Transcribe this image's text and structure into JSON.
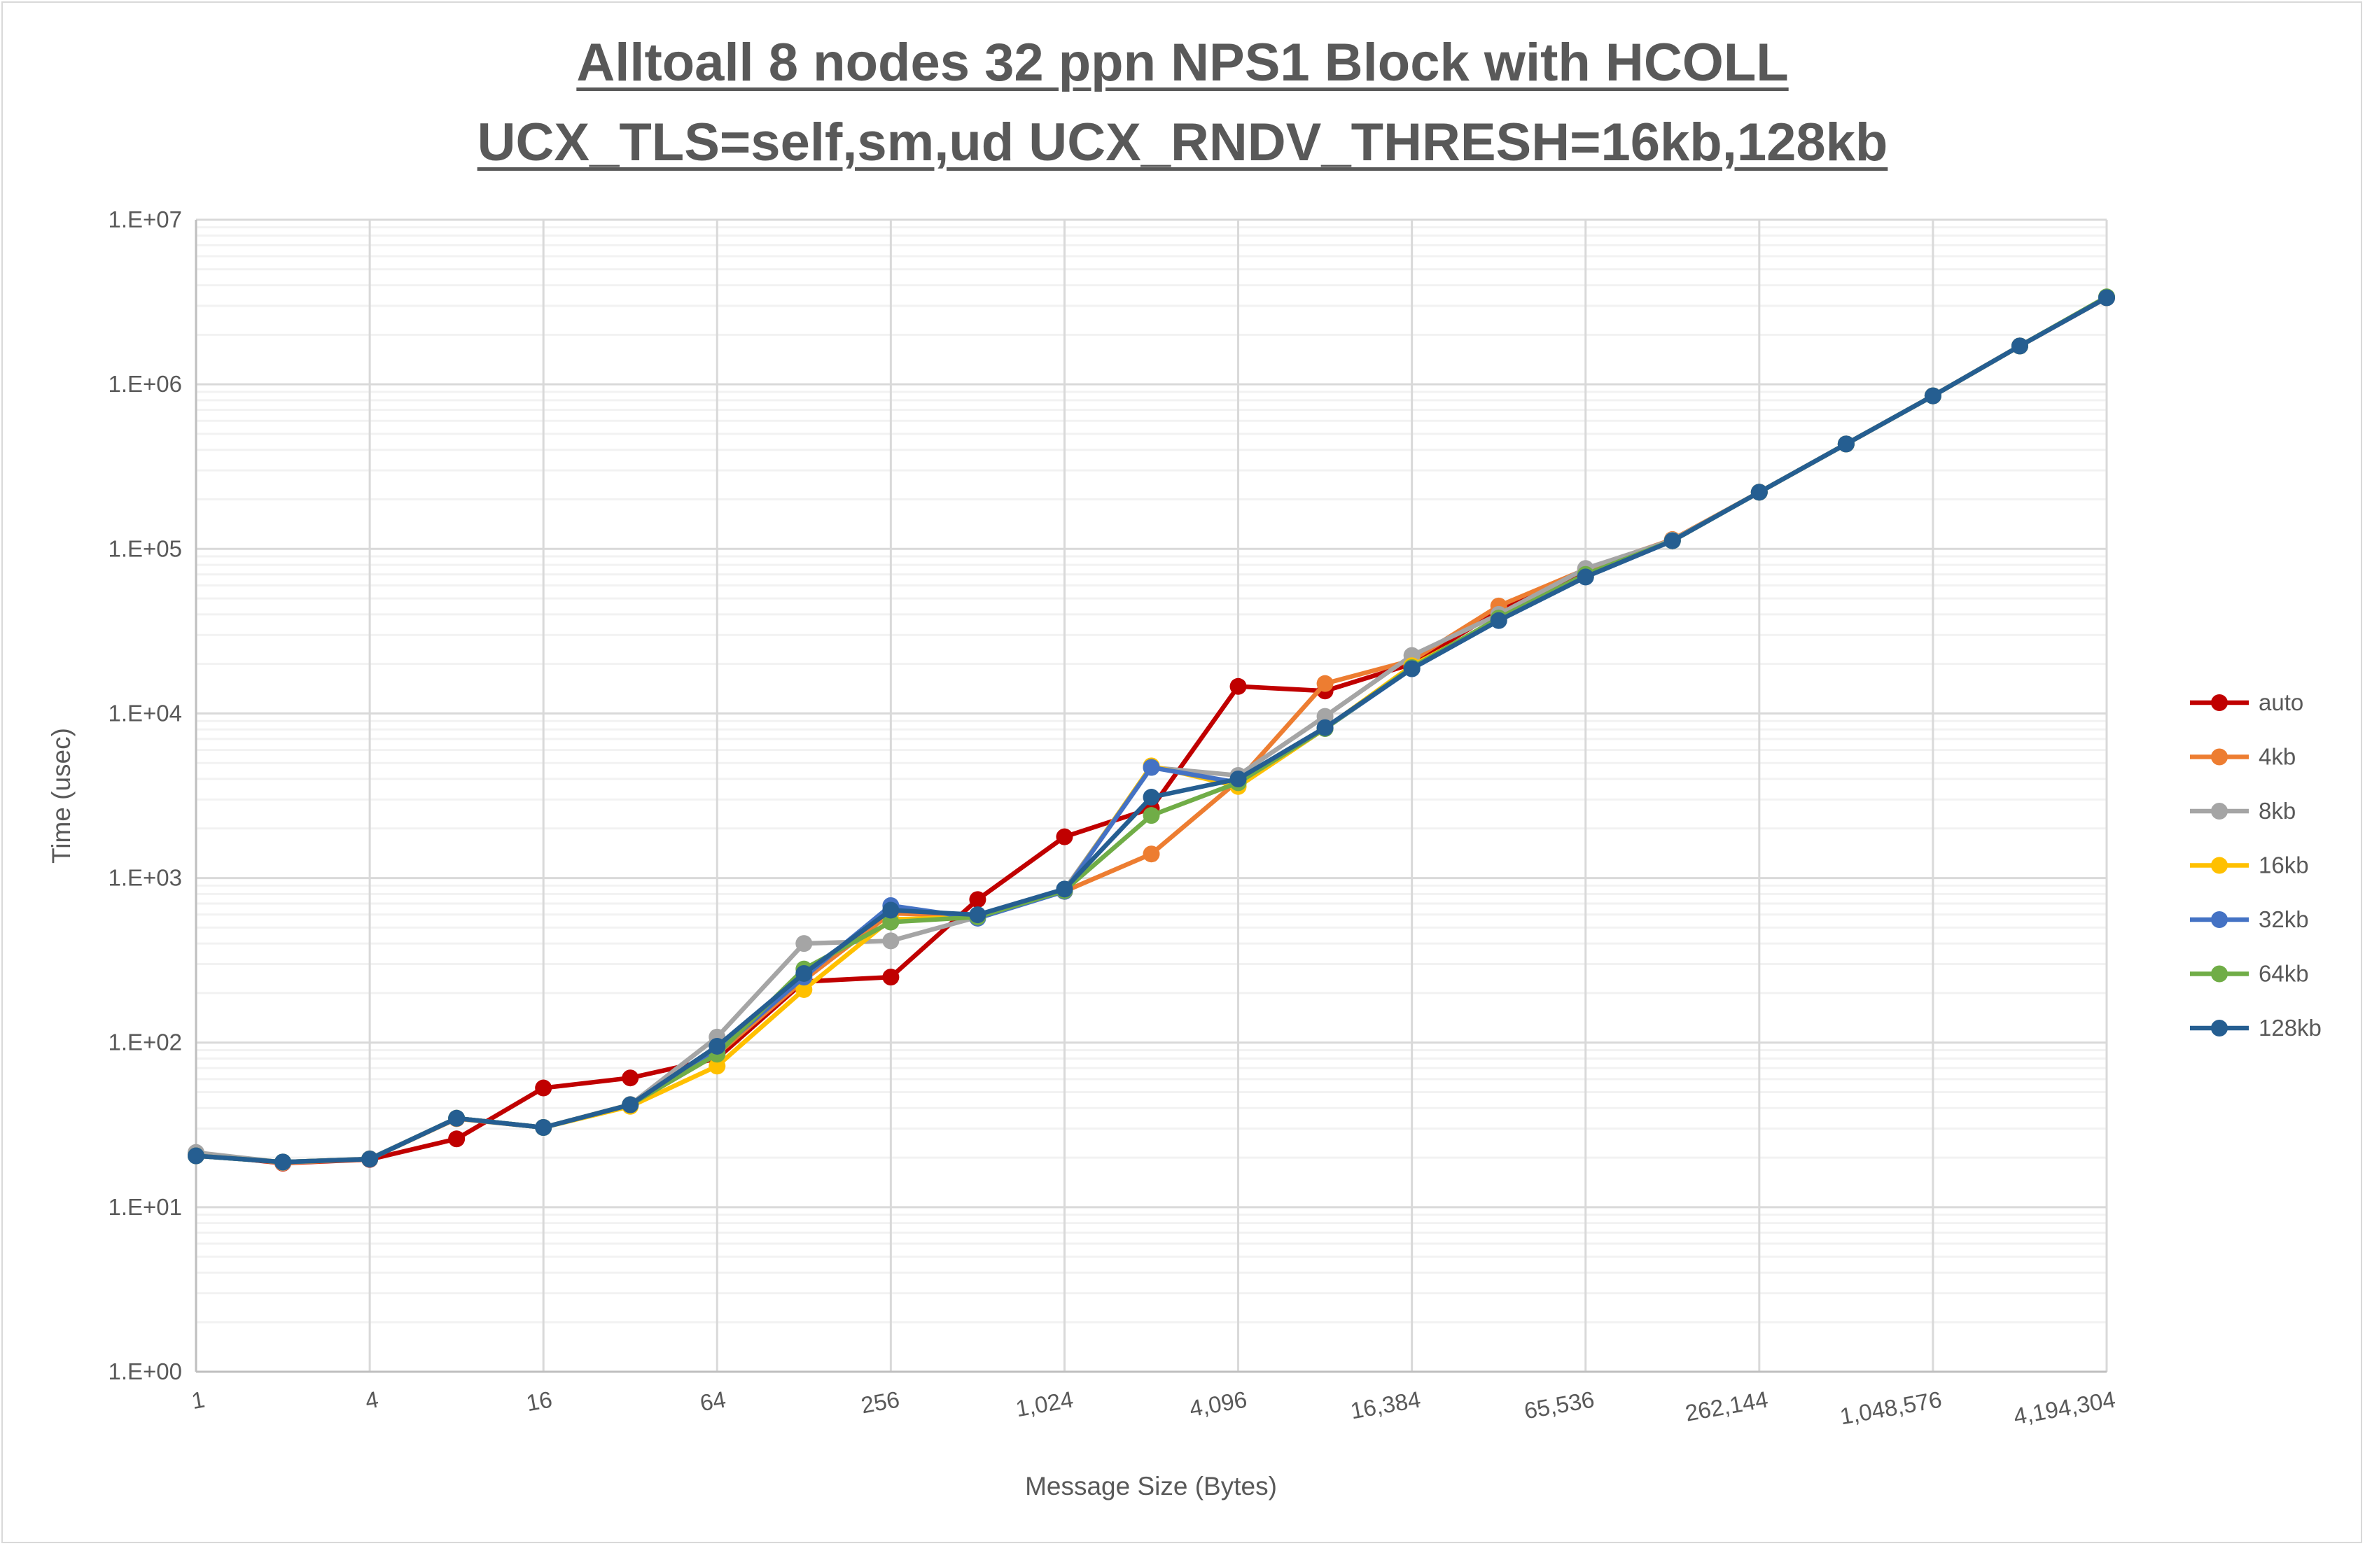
{
  "chart_data": {
    "type": "line",
    "title": [
      "Alltoall 8 nodes 32 ppn NPS1 Block with HCOLL",
      "UCX_TLS=self,sm,ud UCX_RNDV_THRESH=16kb,128kb"
    ],
    "xlabel": "Message Size (Bytes)",
    "ylabel": "Time (usec)",
    "x_scale": "log2",
    "y_scale": "log10",
    "ylim": [
      1,
      10000000
    ],
    "xlim": [
      1,
      4194304
    ],
    "grid": true,
    "legend": "right",
    "x": [
      1,
      2,
      4,
      8,
      16,
      32,
      64,
      128,
      256,
      512,
      1024,
      2048,
      4096,
      8192,
      16384,
      32768,
      65536,
      131072,
      262144,
      524288,
      1048576,
      2097152,
      4194304
    ],
    "x_tick_labels": [
      "1",
      "4",
      "16",
      "64",
      "256",
      "1,024",
      "4,096",
      "16,384",
      "65,536",
      "262,144",
      "1,048,576",
      "4,194,304"
    ],
    "y_tick_labels": [
      "1.E+00",
      "1.E+01",
      "1.E+02",
      "1.E+03",
      "1.E+04",
      "1.E+05",
      "1.E+06",
      "1.E+07"
    ],
    "series": [
      {
        "name": "auto",
        "color": "#C00000",
        "values": [
          21,
          18.5,
          19.5,
          26,
          53,
          61,
          80,
          235,
          250,
          740,
          1780,
          2650,
          14600,
          13700,
          20000,
          42000,
          72000,
          113000,
          221000,
          434000,
          851000,
          1710000,
          3360000
        ]
      },
      {
        "name": "4kb",
        "color": "#ED7D31",
        "values": [
          21,
          18.6,
          19.6,
          34.5,
          30.5,
          42,
          85,
          240,
          610,
          590,
          830,
          1400,
          3900,
          15200,
          21000,
          45000,
          75000,
          114000,
          221000,
          434000,
          851000,
          1710000,
          3380000
        ]
      },
      {
        "name": "8kb",
        "color": "#A5A5A5",
        "values": [
          21.5,
          18.7,
          19.7,
          34.7,
          30.5,
          42,
          108,
          400,
          415,
          580,
          850,
          4700,
          4200,
          9600,
          22500,
          40000,
          76000,
          113000,
          221000,
          434000,
          851000,
          1710000,
          3380000
        ]
      },
      {
        "name": "16kb",
        "color": "#FFC000",
        "values": [
          20.5,
          18.8,
          19.6,
          34.7,
          30.5,
          41,
          72,
          210,
          560,
          580,
          830,
          4800,
          3600,
          8100,
          19500,
          37000,
          68000,
          112000,
          221000,
          434000,
          851000,
          1710000,
          3360000
        ]
      },
      {
        "name": "32kb",
        "color": "#4472C4",
        "values": [
          20.5,
          18.8,
          19.6,
          34.7,
          30.5,
          41.9,
          88,
          250,
          680,
          570,
          830,
          4700,
          3800,
          8100,
          18700,
          36700,
          67500,
          112000,
          221000,
          434000,
          851000,
          1710000,
          3360000
        ]
      },
      {
        "name": "64kb",
        "color": "#70AD47",
        "values": [
          20.5,
          18.8,
          19.6,
          34.7,
          30.5,
          41.9,
          85,
          280,
          540,
          580,
          840,
          2400,
          3800,
          8100,
          19000,
          38000,
          70000,
          112000,
          221000,
          434000,
          851000,
          1710000,
          3400000
        ]
      },
      {
        "name": "128kb",
        "color": "#255E91",
        "values": [
          20.5,
          18.8,
          19.6,
          34.7,
          30.5,
          41.9,
          95,
          263,
          638,
          598,
          857,
          3100,
          4000,
          8200,
          18700,
          36700,
          67500,
          112000,
          221000,
          434000,
          851000,
          1710000,
          3360000
        ]
      }
    ]
  }
}
